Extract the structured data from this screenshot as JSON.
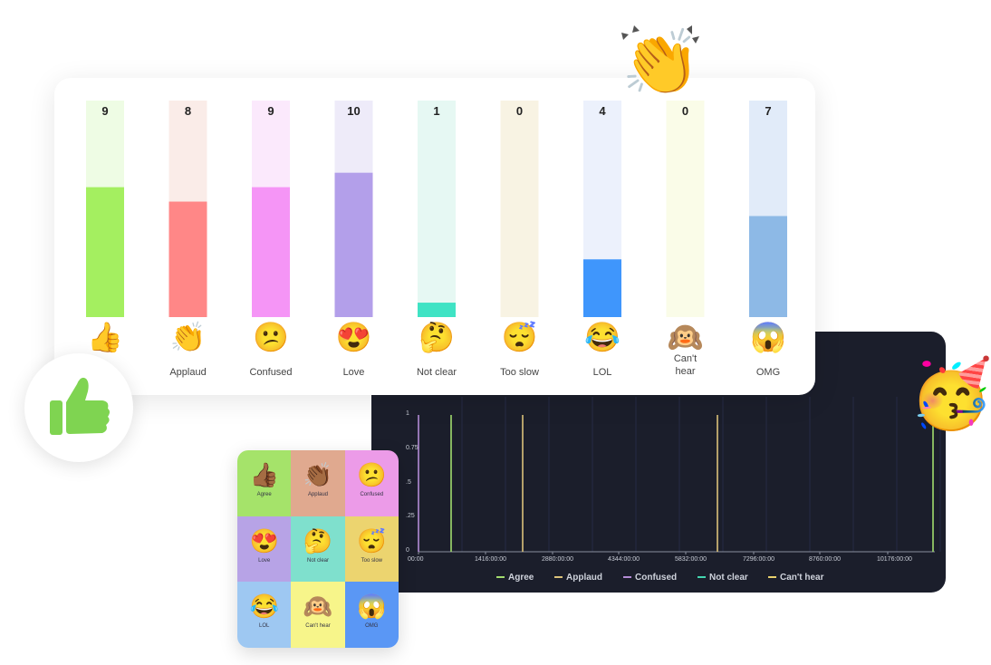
{
  "chart_data": [
    {
      "type": "bar",
      "categories": [
        "",
        "Applaud",
        "Confused",
        "Love",
        "Not clear",
        "Too slow",
        "LOL",
        "Can't hear",
        "OMG"
      ],
      "values": [
        9,
        8,
        9,
        10,
        1,
        0,
        4,
        0,
        7
      ],
      "ylim": [
        0,
        15
      ],
      "emojis": [
        "👍",
        "👏",
        "😕",
        "😍",
        "🤔",
        "😴",
        "😂",
        "🙉",
        "😱"
      ],
      "bar_colors": [
        "#a4ef60",
        "#ff8787",
        "#f595f6",
        "#b39fea",
        "#3fe3c4",
        "#f8f0d8",
        "#3f96fc",
        "#f9fbe0",
        "#8db9e6"
      ],
      "track_colors": [
        "#eefce4",
        "#faece8",
        "#fbe9fc",
        "#eeebf9",
        "#e6f8f3",
        "#f8f3e3",
        "#ecf1fc",
        "#fafce8",
        "#e1ebf9"
      ]
    },
    {
      "type": "line",
      "ylim": [
        0,
        1
      ],
      "yticks": [
        "0",
        ".25",
        ".5",
        "0.75",
        "1"
      ],
      "xticks": [
        "00:00",
        "1416:00:00",
        "2880:00:00",
        "4344:00:00",
        "5832:00:00",
        "7296:00:00",
        "8760:00:00",
        "10176:00:00"
      ],
      "series": [
        {
          "name": "Agree",
          "color": "#a2dc6e",
          "spikes_at": [
            "00:00 + 260",
            "10176:00:00 + 1480"
          ]
        },
        {
          "name": "Applaud",
          "color": "#dcc27a",
          "spikes_at": [
            "1416:00:00 + 430",
            "5832:00:00 + 900"
          ]
        },
        {
          "name": "Confused",
          "color": "#b38bd6",
          "spikes_at": [
            "00:00 + 0"
          ]
        },
        {
          "name": "Not clear",
          "color": "#43d6b0",
          "spikes_at": []
        },
        {
          "name": "Can't hear",
          "color": "#e8d06d",
          "spikes_at": []
        }
      ]
    }
  ],
  "grid": {
    "cells": [
      {
        "emoji": "👍🏾",
        "label": "Agree",
        "color": "#a5e36a"
      },
      {
        "emoji": "👏🏾",
        "label": "Applaud",
        "color": "#e0a98f"
      },
      {
        "emoji": "😕",
        "label": "Confused",
        "color": "#ec9be8"
      },
      {
        "emoji": "😍",
        "label": "Love",
        "color": "#b7a3e6"
      },
      {
        "emoji": "🤔",
        "label": "Not clear",
        "color": "#7fe0cd"
      },
      {
        "emoji": "😴",
        "label": "Too slow",
        "color": "#ecd46f"
      },
      {
        "emoji": "😂",
        "label": "LOL",
        "color": "#9ec8f2"
      },
      {
        "emoji": "🙉",
        "label": "Can't hear",
        "color": "#f7f58a"
      },
      {
        "emoji": "😱",
        "label": "OMG",
        "color": "#5a97f5"
      }
    ]
  },
  "decor": {
    "clap": "👏",
    "party": "🥳",
    "thumb_color": "#7fd451"
  }
}
